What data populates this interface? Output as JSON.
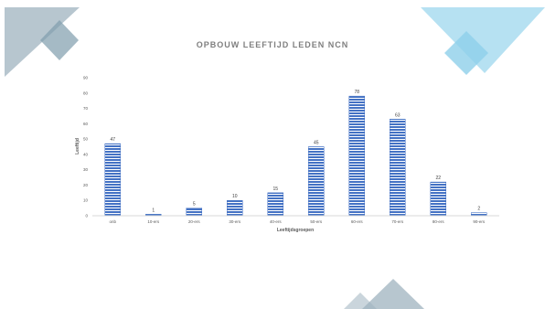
{
  "slide": {
    "colors": {
      "bar": "#4472c4",
      "bar_stripe": "#ffffff",
      "deco_slate": "#9fb3bf",
      "deco_slate_dark": "#7f9cad",
      "deco_blue": "#a9dcf0",
      "deco_blue_dark": "#8fd0ea"
    }
  },
  "chart_data": {
    "type": "bar",
    "title": "OPBOUW LEEFTIJD LEDEN NCN",
    "xlabel": "Leeftijdsgroepen",
    "ylabel": "Leeftijd",
    "categories": [
      "onb",
      "10-ers",
      "20-ers",
      "30-ers",
      "40-ers",
      "50-ers",
      "60-ers",
      "70-ers",
      "80-ers",
      "90-ers"
    ],
    "values": [
      47,
      1,
      5,
      10,
      15,
      45,
      78,
      63,
      22,
      2
    ],
    "ylim": [
      0,
      90
    ],
    "yticks": [
      0,
      10,
      20,
      30,
      40,
      50,
      60,
      70,
      80,
      90
    ],
    "grid": false,
    "legend": "none",
    "data_labels": true
  }
}
